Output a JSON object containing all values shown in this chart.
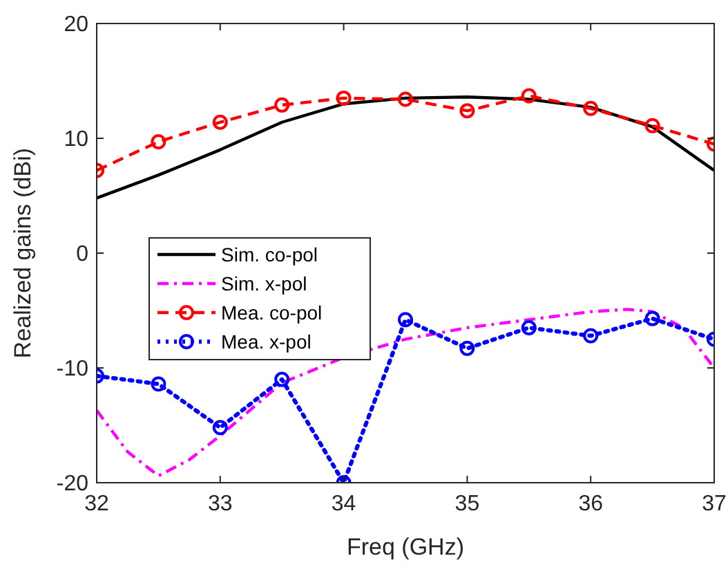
{
  "chart_data": {
    "type": "line",
    "xlabel": "Freq (GHz)",
    "ylabel": "Realized gains (dBi)",
    "xlim": [
      32,
      37
    ],
    "xticks": [
      32,
      33,
      34,
      35,
      36,
      37
    ],
    "ylim": [
      -20,
      20
    ],
    "yticks": [
      -20,
      -10,
      0,
      10,
      20
    ],
    "grid": false,
    "legend": "left",
    "series": [
      {
        "name": "Sim. co-pol",
        "color": "#000000",
        "line_style": "solid",
        "marker": "none",
        "x": [
          32,
          32.5,
          33,
          33.5,
          34,
          34.5,
          35,
          35.5,
          36,
          36.5,
          37
        ],
        "values": [
          4.8,
          6.8,
          9,
          11.4,
          13,
          13.5,
          13.6,
          13.4,
          12.7,
          11,
          7.2
        ]
      },
      {
        "name": "Sim. x-pol",
        "color": "#ff00ff",
        "line_style": "dashdot",
        "marker": "none",
        "x": [
          32,
          32.25,
          32.5,
          32.75,
          33,
          33.5,
          34,
          34.5,
          35,
          35.5,
          36,
          36.3,
          36.5,
          36.75,
          37
        ],
        "values": [
          -13.7,
          -17.3,
          -19.4,
          -18,
          -15.9,
          -11.3,
          -9.1,
          -7.5,
          -6.5,
          -5.8,
          -5.1,
          -4.9,
          -5.1,
          -6.5,
          -10
        ]
      },
      {
        "name": "Mea. co-pol",
        "color": "#ff0000",
        "line_style": "dashed",
        "marker": "circle",
        "x": [
          32,
          32.5,
          33,
          33.5,
          34,
          34.5,
          35,
          35.5,
          36,
          36.5,
          37
        ],
        "values": [
          7.2,
          9.7,
          11.4,
          12.9,
          13.5,
          13.4,
          12.4,
          13.7,
          12.6,
          11.1,
          9.5
        ]
      },
      {
        "name": "Mea. x-pol",
        "color": "#0000ff",
        "line_style": "dotted",
        "marker": "circle",
        "x": [
          32,
          32.5,
          33,
          33.5,
          34,
          34.5,
          35,
          35.5,
          36,
          36.5,
          37
        ],
        "values": [
          -10.7,
          -11.4,
          -15.2,
          -11,
          -20,
          -5.8,
          -8.3,
          -6.5,
          -7.2,
          -5.7,
          -7.5
        ]
      }
    ]
  }
}
